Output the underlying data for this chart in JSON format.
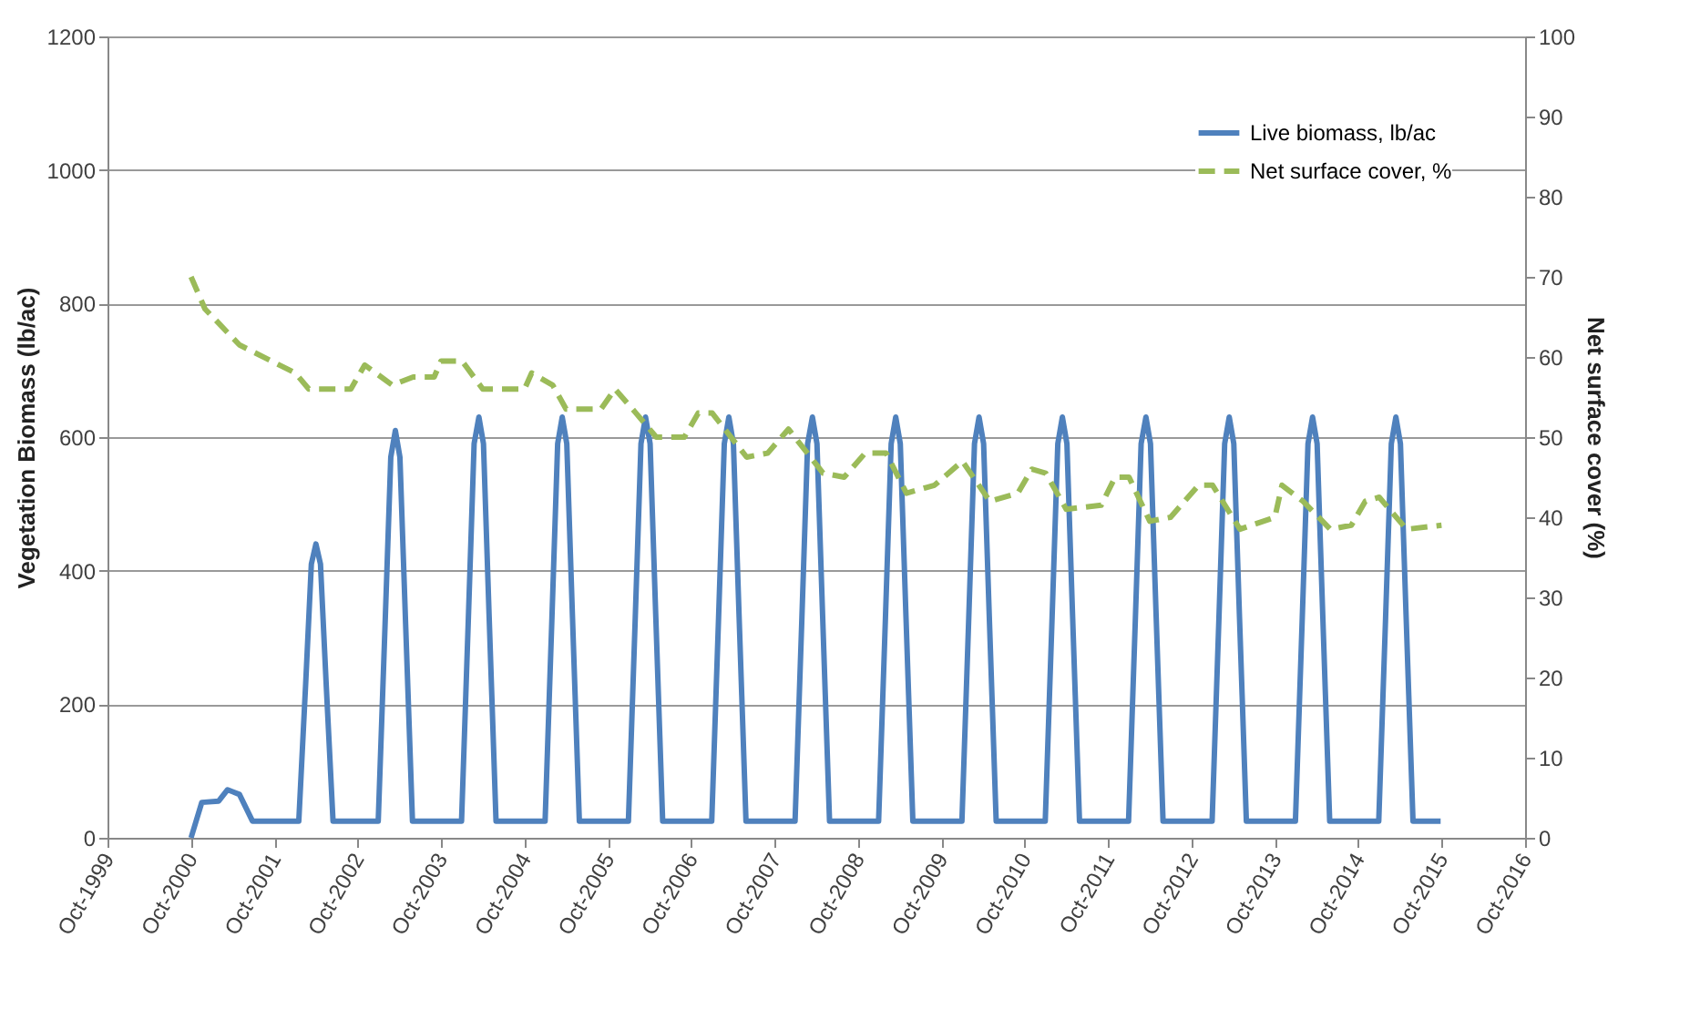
{
  "chart_data": {
    "type": "line",
    "ylabel": "Vegetation Biomass (lb/ac)",
    "y2label": "Net surface cover (%)",
    "xlim": [
      "1999-10-01",
      "2016-10-01"
    ],
    "xticks": [
      {
        "value": "1999-10-01",
        "label": "Oct-1999"
      },
      {
        "value": "2000-10-01",
        "label": "Oct-2000"
      },
      {
        "value": "2001-10-01",
        "label": "Oct-2001"
      },
      {
        "value": "2002-10-01",
        "label": "Oct-2002"
      },
      {
        "value": "2003-10-01",
        "label": "Oct-2003"
      },
      {
        "value": "2004-10-01",
        "label": "Oct-2004"
      },
      {
        "value": "2005-10-01",
        "label": "Oct-2005"
      },
      {
        "value": "2006-10-01",
        "label": "Oct-2006"
      },
      {
        "value": "2007-10-01",
        "label": "Oct-2007"
      },
      {
        "value": "2008-10-01",
        "label": "Oct-2008"
      },
      {
        "value": "2009-10-01",
        "label": "Oct-2009"
      },
      {
        "value": "2010-10-01",
        "label": "Oct-2010"
      },
      {
        "value": "2011-10-01",
        "label": "Oct-2011"
      },
      {
        "value": "2012-10-01",
        "label": "Oct-2012"
      },
      {
        "value": "2013-10-01",
        "label": "Oct-2013"
      },
      {
        "value": "2014-10-01",
        "label": "Oct-2014"
      },
      {
        "value": "2015-10-01",
        "label": "Oct-2015"
      },
      {
        "value": "2016-10-01",
        "label": "Oct-2016"
      }
    ],
    "ylim": [
      0,
      1200
    ],
    "yticks": [
      0,
      200,
      400,
      600,
      800,
      1000,
      1200
    ],
    "y2lim": [
      0,
      100
    ],
    "y2ticks": [
      0,
      10,
      20,
      30,
      40,
      50,
      60,
      70,
      80,
      90,
      100
    ],
    "grid": "y",
    "legend": "top right",
    "marker": "none",
    "series": [
      {
        "name": "Live biomass, lb/ac",
        "color": "#4f81bd",
        "line_style": "solid",
        "x": [
          "2000-10-01",
          "2000-11-17",
          "2001-01-30",
          "2001-03-10",
          "2001-05-01",
          "2001-06-27",
          "2002-01-16",
          "2002-02-15",
          "2002-03-12",
          "2002-04-01",
          "2002-04-21",
          "2002-05-16",
          "2002-06-15",
          "2002-12-30",
          "2003-01-29",
          "2003-02-23",
          "2003-03-15",
          "2003-04-04",
          "2003-04-29",
          "2003-05-29",
          "2003-12-30",
          "2004-01-29",
          "2004-02-23",
          "2004-03-15",
          "2004-04-04",
          "2004-04-29",
          "2004-05-29",
          "2004-12-30",
          "2005-01-29",
          "2005-02-23",
          "2005-03-15",
          "2005-04-04",
          "2005-04-29",
          "2005-05-29",
          "2005-12-30",
          "2006-01-29",
          "2006-02-23",
          "2006-03-15",
          "2006-04-04",
          "2006-04-29",
          "2006-05-29",
          "2006-12-30",
          "2007-01-29",
          "2007-02-23",
          "2007-03-15",
          "2007-04-04",
          "2007-04-29",
          "2007-05-29",
          "2007-12-30",
          "2008-01-29",
          "2008-02-23",
          "2008-03-15",
          "2008-04-04",
          "2008-04-29",
          "2008-05-29",
          "2008-12-30",
          "2009-01-29",
          "2009-02-23",
          "2009-03-15",
          "2009-04-04",
          "2009-04-29",
          "2009-05-29",
          "2009-12-30",
          "2010-01-29",
          "2010-02-23",
          "2010-03-15",
          "2010-04-04",
          "2010-04-29",
          "2010-05-29",
          "2010-12-30",
          "2011-01-29",
          "2011-02-23",
          "2011-03-15",
          "2011-04-04",
          "2011-04-29",
          "2011-05-29",
          "2011-12-30",
          "2012-01-29",
          "2012-02-23",
          "2012-03-15",
          "2012-04-04",
          "2012-04-29",
          "2012-05-29",
          "2012-12-30",
          "2013-01-29",
          "2013-02-23",
          "2013-03-15",
          "2013-04-04",
          "2013-04-29",
          "2013-05-29",
          "2013-12-30",
          "2014-01-29",
          "2014-02-23",
          "2014-03-15",
          "2014-04-04",
          "2014-04-29",
          "2014-05-29",
          "2014-12-30",
          "2015-01-29",
          "2015-02-23",
          "2015-03-15",
          "2015-04-04",
          "2015-04-29",
          "2015-05-29",
          "2015-09-27"
        ],
        "values": [
          0,
          53,
          55,
          72,
          65,
          25,
          25,
          230,
          410,
          440,
          410,
          230,
          25,
          25,
          320,
          570,
          610,
          570,
          320,
          25,
          25,
          330,
          590,
          630,
          590,
          330,
          25,
          25,
          330,
          590,
          630,
          590,
          330,
          25,
          25,
          330,
          590,
          630,
          590,
          330,
          25,
          25,
          330,
          590,
          630,
          590,
          330,
          25,
          25,
          330,
          590,
          630,
          590,
          330,
          25,
          25,
          330,
          590,
          630,
          590,
          330,
          25,
          25,
          330,
          590,
          630,
          590,
          330,
          25,
          25,
          330,
          590,
          630,
          590,
          330,
          25,
          25,
          330,
          590,
          630,
          590,
          330,
          25,
          25,
          330,
          590,
          630,
          590,
          330,
          25,
          25,
          330,
          590,
          630,
          590,
          330,
          25,
          25,
          330,
          590,
          630,
          590,
          330,
          25,
          25
        ]
      },
      {
        "name": "Net surface cover, %",
        "color": "#9bbb59",
        "line_style": "dashed",
        "axis": "y2",
        "x": [
          "2000-10",
          "2000-12",
          "2001-05",
          "2002-01",
          "2002-03",
          "2002-09",
          "2002-11",
          "2003-03",
          "2003-06",
          "2003-09",
          "2003-10",
          "2004-01",
          "2004-04",
          "2004-07",
          "2004-10",
          "2004-11",
          "2005-02",
          "2005-04",
          "2005-09",
          "2005-11",
          "2006-02",
          "2006-05",
          "2006-09",
          "2006-11",
          "2007-01",
          "2007-06",
          "2007-09",
          "2007-12",
          "2008-05",
          "2008-08",
          "2008-11",
          "2009-02",
          "2009-05",
          "2009-09",
          "2010-01",
          "2010-05",
          "2010-09",
          "2010-11",
          "2011-01",
          "2011-04",
          "2011-09",
          "2011-11",
          "2012-01",
          "2012-04",
          "2012-07",
          "2012-11",
          "2013-01",
          "2013-05",
          "2013-10",
          "2013-11",
          "2014-02",
          "2014-06",
          "2014-09",
          "2014-11",
          "2015-01",
          "2015-05",
          "2015-10"
        ],
        "values": [
          70,
          66,
          61.5,
          58,
          56,
          56,
          59,
          56.5,
          57.5,
          57.5,
          59.5,
          59.5,
          56,
          56,
          56,
          58,
          56.5,
          53.5,
          53.5,
          56,
          53,
          50,
          50,
          53,
          53,
          47.5,
          48,
          51,
          45.5,
          45,
          48,
          48,
          43,
          44,
          47,
          42,
          43,
          46,
          45.5,
          41,
          41.5,
          45,
          45,
          39.5,
          40,
          44,
          44,
          38.5,
          40,
          44,
          42,
          38.5,
          39,
          42,
          42.5,
          38.5,
          39
        ]
      }
    ]
  }
}
